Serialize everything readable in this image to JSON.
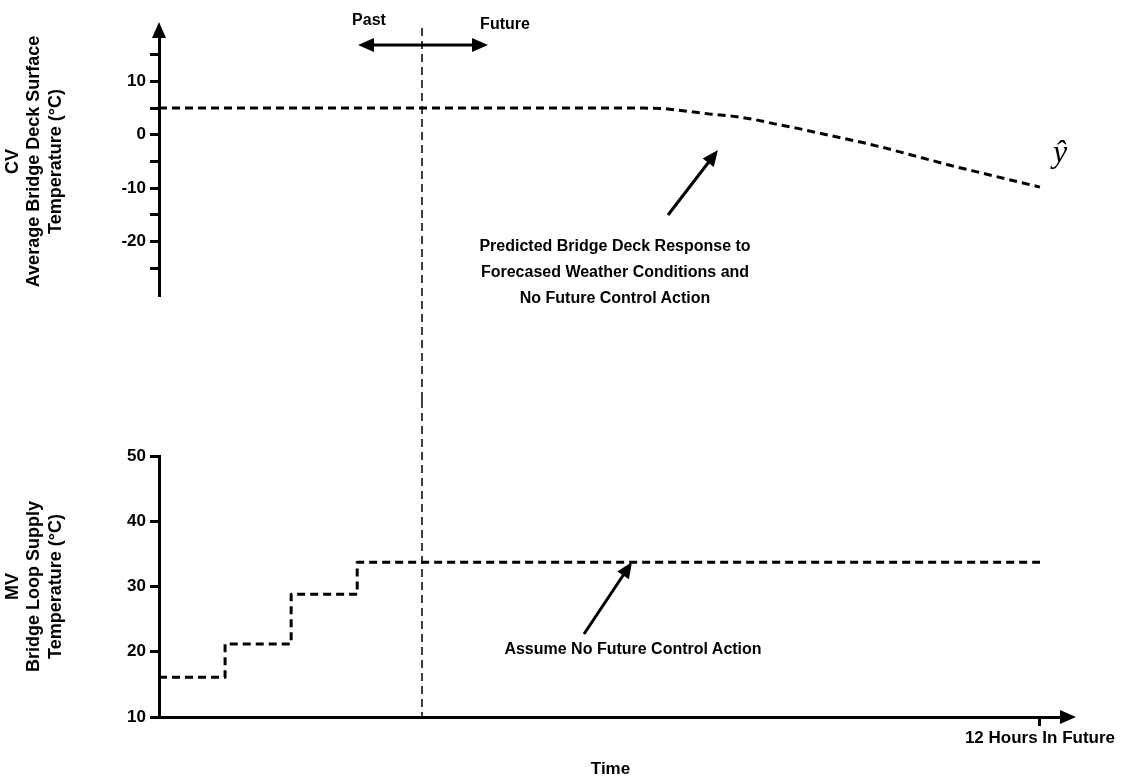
{
  "chart_data": [
    {
      "type": "line",
      "ylabel": "CV\nAverage Bridge Deck Surface\nTemperature (°C)",
      "ylim": [
        -30,
        20
      ],
      "categories": [
        null,
        null,
        null,
        null,
        null,
        null,
        null,
        null,
        null,
        null,
        null,
        null,
        null,
        null,
        null,
        null,
        null,
        null,
        null,
        null,
        null,
        null,
        null,
        null,
        null,
        null,
        null,
        null,
        null,
        null,
        null,
        null,
        null,
        null,
        null,
        null,
        null,
        null,
        null,
        null,
        null,
        null
      ],
      "yticks": [
        {
          "value": -25,
          "label": null
        },
        -20,
        {
          "value": -15,
          "label": null
        },
        -10,
        {
          "value": -5,
          "label": null
        },
        0,
        {
          "value": 5,
          "label": null
        },
        10,
        {
          "value": 15,
          "label": null
        }
      ],
      "tick_labels": "y",
      "line_style": "dashed",
      "marker": "none",
      "series": [
        {
          "name": "ŷ",
          "color": "#000000",
          "values": [
            5,
            5,
            5,
            5,
            5,
            5,
            5,
            5,
            5,
            5,
            5,
            5,
            5,
            5,
            5,
            5,
            5,
            5,
            5,
            5,
            5,
            5,
            5,
            4.9,
            4.4,
            3.9,
            3.5,
            2.9,
            2.0,
            1.2,
            0.3,
            -0.6,
            -1.5,
            -2.5,
            -3.6,
            -4.7,
            -5.8,
            -6.8,
            -7.8,
            -8.8,
            -9.8,
            null
          ]
        }
      ],
      "annotations": [
        "Past",
        "Future",
        "Predicted Bridge Deck Response to\nForecased Weather Conditions and\nNo Future Control Action"
      ]
    },
    {
      "type": "step",
      "ylabel": "MV\nBridge Loop Supply\nTemperature (°C)",
      "xlabel": "Time",
      "ylim": [
        10,
        50
      ],
      "categories": [
        null,
        null,
        null,
        null,
        null,
        null,
        null,
        null,
        null,
        null,
        null,
        null,
        null,
        null,
        null,
        null,
        null,
        null,
        null,
        null,
        null,
        null,
        null,
        null,
        null,
        null,
        null,
        null,
        null,
        null,
        null,
        null,
        null,
        null,
        null,
        null,
        null,
        null,
        null,
        null,
        "12 Hours In Future",
        null
      ],
      "yticks": [
        10,
        20,
        30,
        40,
        50
      ],
      "line_style": "dashed",
      "marker": "none",
      "series": [
        {
          "color": "#000000",
          "values": [
            16.1,
            16.1,
            16.1,
            21.2,
            21.2,
            21.2,
            28.8,
            28.8,
            28.8,
            33.7,
            33.7,
            33.7,
            33.7,
            33.7,
            33.7,
            33.7,
            33.7,
            33.7,
            33.7,
            33.7,
            33.7,
            33.7,
            33.7,
            33.7,
            33.7,
            33.7,
            33.7,
            33.7,
            33.7,
            33.7,
            33.7,
            33.7,
            33.7,
            33.7,
            33.7,
            33.7,
            33.7,
            33.7,
            33.7,
            33.7,
            33.7,
            null
          ]
        }
      ],
      "annotations": [
        "Assume No Future Control Action"
      ]
    }
  ]
}
